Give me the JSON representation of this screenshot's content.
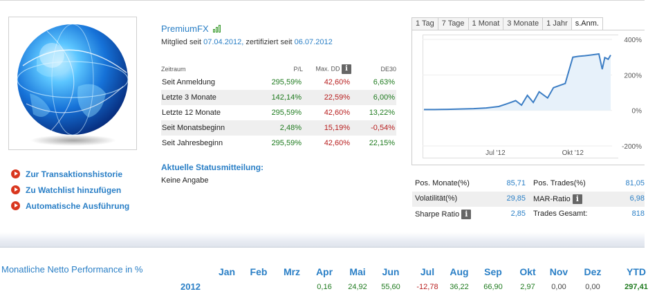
{
  "profile": {
    "name": "PremiumFX",
    "member_prefix": "Mitglied seit",
    "member_date": "07.04.2012,",
    "cert_prefix": "zertifiziert seit",
    "cert_date": "06.07.2012"
  },
  "actions": [
    {
      "label": "Zur Transaktionshistorie"
    },
    {
      "label": "Zu Watchlist hinzufügen"
    },
    {
      "label": "Automatische Ausführung"
    }
  ],
  "perf_table": {
    "headers": {
      "period": "Zeitraum",
      "pl": "P/L",
      "maxdd": "Max. DD",
      "de30": "DE30"
    },
    "rows": [
      {
        "period": "Seit Anmeldung",
        "pl": "295,59%",
        "maxdd": "42,60%",
        "de30": "6,63%"
      },
      {
        "period": "Letzte 3 Monate",
        "pl": "142,14%",
        "maxdd": "22,59%",
        "de30": "6,00%"
      },
      {
        "period": "Letzte 12 Monate",
        "pl": "295,59%",
        "maxdd": "42,60%",
        "de30": "13,22%"
      },
      {
        "period": "Seit Monatsbeginn",
        "pl": "2,48%",
        "maxdd": "15,19%",
        "de30": "-0,54%"
      },
      {
        "period": "Seit Jahresbeginn",
        "pl": "295,59%",
        "maxdd": "42,60%",
        "de30": "22,15%"
      }
    ]
  },
  "status": {
    "title": "Aktuelle Statusmitteilung:",
    "text": "Keine Angabe"
  },
  "chart": {
    "tabs": [
      "1 Tag",
      "7 Tage",
      "1 Monat",
      "3 Monate",
      "1 Jahr",
      "s.Anm."
    ],
    "active_tab": "s.Anm."
  },
  "chart_data": {
    "type": "area",
    "ylim": [
      -200,
      400
    ],
    "yticks": [
      "400%",
      "200%",
      "0%",
      "-200%"
    ],
    "xticks": [
      "Jul '12",
      "Okt '12"
    ],
    "x": [
      "07.04.2012",
      "20.04.2012",
      "05.05.2012",
      "20.05.2012",
      "05.06.2012",
      "20.06.2012",
      "05.07.2012",
      "15.07.2012",
      "25.07.2012",
      "01.08.2012",
      "08.08.2012",
      "15.08.2012",
      "22.08.2012",
      "01.09.2012",
      "08.09.2012",
      "15.09.2012",
      "22.09.2012",
      "01.10.2012",
      "08.10.2012",
      "15.10.2012",
      "22.10.2012",
      "01.11.2012",
      "05.11.2012",
      "08.11.2012",
      "12.11.2012",
      "15.11.2012"
    ],
    "values": [
      5,
      5,
      6,
      8,
      10,
      14,
      22,
      38,
      55,
      30,
      85,
      45,
      105,
      70,
      128,
      140,
      152,
      300,
      305,
      308,
      312,
      318,
      232,
      298,
      288,
      312
    ],
    "color": "#3b7dc4",
    "fill": "#e7f1fa"
  },
  "stats": [
    {
      "l1": "Pos. Monate(%)",
      "v1": "85,71",
      "l2": "Pos. Trades(%)",
      "v2": "81,05"
    },
    {
      "l1": "Volatilität(%)",
      "v1": "29,85",
      "l2": "MAR-Ratio",
      "v2": "6,98"
    },
    {
      "l1": "Sharpe Ratio",
      "v1": "2,85",
      "l2": "Trades Gesamt:",
      "v2": "818"
    }
  ],
  "monthly": {
    "title": "Monatliche Netto Performance in %",
    "months": [
      "Jan",
      "Feb",
      "Mrz",
      "Apr",
      "Mai",
      "Jun",
      "Jul",
      "Aug",
      "Sep",
      "Okt",
      "Nov",
      "Dez",
      "YTD"
    ],
    "year": "2012",
    "values": [
      "",
      "",
      "",
      "0,16",
      "24,92",
      "55,60",
      "-12,78",
      "36,22",
      "66,90",
      "2,97",
      "0,00",
      "0,00",
      "297,41"
    ]
  },
  "colors": {
    "accent": "#2a7fc6",
    "positive": "#1e7a1e",
    "negative": "#b71c1c",
    "action_dot": "#d9361e"
  }
}
